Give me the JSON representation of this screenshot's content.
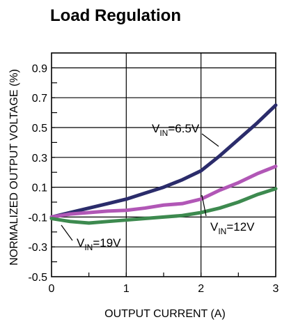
{
  "chart_data": {
    "type": "line",
    "title": "Load Regulation",
    "xlabel": "OUTPUT CURRENT (A)",
    "ylabel": "NORMALIZED OUTPUT VOLTAGE (%)",
    "xlim": [
      0,
      3
    ],
    "ylim": [
      -0.5,
      1.0
    ],
    "x_ticks": [
      "0",
      "1",
      "2",
      "3"
    ],
    "y_ticks": [
      "0.9",
      "0.7",
      "0.5",
      "0.3",
      "0.1",
      "-0.1",
      "-0.3",
      "-0.5"
    ],
    "grid": true,
    "series": [
      {
        "name": "VIN=6.5V",
        "label_main": "V",
        "label_sub": "IN",
        "label_rest": "=6.5V",
        "color": "#2b2c6b",
        "x": [
          0,
          0.25,
          0.5,
          0.75,
          1.0,
          1.25,
          1.5,
          1.75,
          2.0,
          2.25,
          2.5,
          2.75,
          3.0
        ],
        "y": [
          -0.1,
          -0.07,
          -0.04,
          -0.01,
          0.02,
          0.06,
          0.1,
          0.15,
          0.21,
          0.31,
          0.42,
          0.53,
          0.65
        ]
      },
      {
        "name": "VIN=12V",
        "label_main": "V",
        "label_sub": "IN",
        "label_rest": "=12V",
        "color": "#b157b6",
        "x": [
          0,
          0.25,
          0.5,
          0.75,
          1.0,
          1.25,
          1.5,
          1.75,
          2.0,
          2.25,
          2.5,
          2.75,
          3.0
        ],
        "y": [
          -0.1,
          -0.08,
          -0.07,
          -0.06,
          -0.055,
          -0.04,
          -0.02,
          -0.01,
          0.02,
          0.08,
          0.13,
          0.19,
          0.24
        ]
      },
      {
        "name": "VIN=19V",
        "label_main": "V",
        "label_sub": "IN",
        "label_rest": "=19V",
        "color": "#3d8a4f",
        "x": [
          0,
          0.25,
          0.5,
          0.75,
          1.0,
          1.25,
          1.5,
          1.75,
          2.0,
          2.25,
          2.5,
          2.75,
          3.0
        ],
        "y": [
          -0.11,
          -0.13,
          -0.14,
          -0.13,
          -0.12,
          -0.11,
          -0.1,
          -0.09,
          -0.07,
          -0.04,
          0.0,
          0.05,
          0.09
        ]
      }
    ]
  }
}
